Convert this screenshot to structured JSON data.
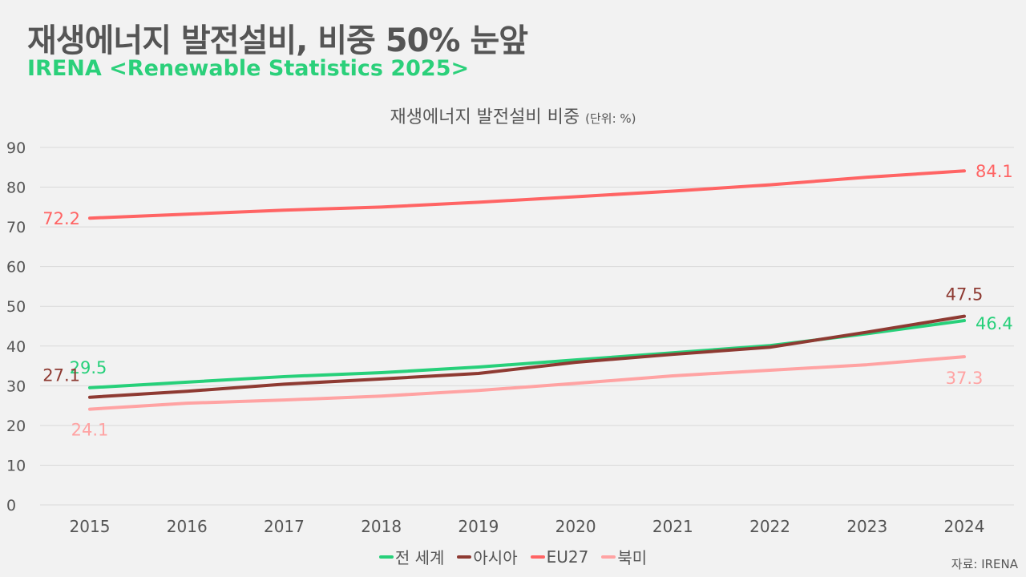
{
  "header": {
    "title": "재생에너지 발전설비, 비중 50% 눈앞",
    "subtitle": "IRENA <Renewable Statistics 2025>"
  },
  "source": "자료: IRENA",
  "chart_data": {
    "type": "line",
    "title": "재생에너지 발전설비 비중",
    "unit": "(단위: %)",
    "xlabel": "",
    "ylabel": "",
    "x": [
      "2015",
      "2016",
      "2017",
      "2018",
      "2019",
      "2020",
      "2021",
      "2022",
      "2023",
      "2024"
    ],
    "ylim": [
      0,
      90
    ],
    "yticks": [
      0,
      10,
      20,
      30,
      40,
      50,
      60,
      70,
      80,
      90
    ],
    "grid": true,
    "legend": "bottom-center",
    "series": [
      {
        "name": "전 세계",
        "color": "#27d07a",
        "values": [
          29.5,
          30.9,
          32.3,
          33.3,
          34.7,
          36.5,
          38.3,
          40.1,
          43.1,
          46.4
        ],
        "start_label": "29.5",
        "end_label": "46.4"
      },
      {
        "name": "아시아",
        "color": "#8e3a32",
        "values": [
          27.1,
          28.6,
          30.4,
          31.7,
          33.1,
          35.9,
          37.9,
          39.7,
          43.5,
          47.5
        ],
        "start_label": "27.1",
        "end_label": "47.5"
      },
      {
        "name": "EU27",
        "color": "#ff6464",
        "values": [
          72.2,
          73.2,
          74.2,
          75.0,
          76.2,
          77.6,
          79.0,
          80.6,
          82.5,
          84.1
        ],
        "start_label": "72.2",
        "end_label": "84.1"
      },
      {
        "name": "북미",
        "color": "#ffa3a3",
        "values": [
          24.1,
          25.6,
          26.4,
          27.4,
          28.8,
          30.6,
          32.5,
          33.9,
          35.3,
          37.3
        ],
        "start_label": "24.1",
        "end_label": "37.3"
      }
    ]
  }
}
